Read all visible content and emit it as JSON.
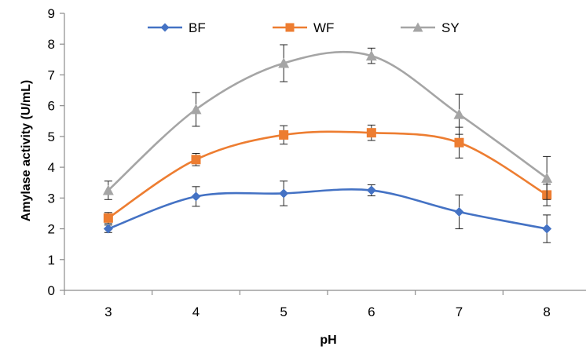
{
  "chart_data": {
    "type": "line",
    "title": "",
    "xlabel": "pH",
    "ylabel": "Amylase activity (U/mL)",
    "x": [
      3,
      4,
      5,
      6,
      7,
      8
    ],
    "ylim": [
      0,
      9
    ],
    "yticks": [
      0,
      1,
      2,
      3,
      4,
      5,
      6,
      7,
      8,
      9
    ],
    "grid": false,
    "legend_position": "top",
    "smooth": true,
    "series": [
      {
        "name": "BF",
        "marker": "diamond",
        "color": "#4472C4",
        "values": [
          2.0,
          3.05,
          3.15,
          3.25,
          2.55,
          2.0
        ],
        "errors": [
          0.12,
          0.32,
          0.4,
          0.18,
          0.55,
          0.45
        ]
      },
      {
        "name": "WF",
        "marker": "square",
        "color": "#ED7D31",
        "values": [
          2.35,
          4.25,
          5.05,
          5.12,
          4.8,
          3.1
        ],
        "errors": [
          0.18,
          0.2,
          0.3,
          0.25,
          0.5,
          0.35
        ]
      },
      {
        "name": "SY",
        "marker": "triangle",
        "color": "#A5A5A5",
        "values": [
          3.25,
          5.88,
          7.38,
          7.62,
          5.72,
          3.65
        ],
        "errors": [
          0.3,
          0.55,
          0.6,
          0.25,
          0.65,
          0.7
        ]
      }
    ]
  }
}
